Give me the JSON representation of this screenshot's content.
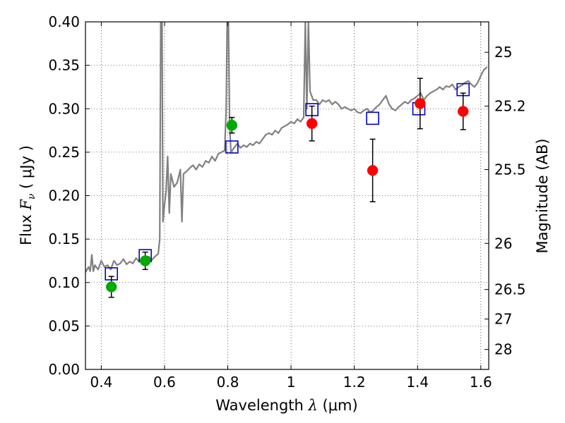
{
  "chart_data": {
    "type": "scatter",
    "xlabel": {
      "pre": "Wavelength ",
      "sym": "λ",
      "post": " (μm)"
    },
    "ylabel": {
      "pre": "Flux ",
      "sym": "F",
      "sub": "ν",
      "post": " ( μJy )"
    },
    "ylabel_right": "Magnitude (AB)",
    "xlim": [
      0.35,
      1.625
    ],
    "ylim": [
      0.0,
      0.4
    ],
    "xticks": [
      0.4,
      0.6,
      0.8,
      1.0,
      1.2,
      1.4,
      1.6
    ],
    "xtick_labels": [
      "0.4",
      "0.6",
      "0.8",
      "1",
      "1.2",
      "1.4",
      "1.6"
    ],
    "yticks": [
      0.0,
      0.05,
      0.1,
      0.15,
      0.2,
      0.25,
      0.3,
      0.35,
      0.4
    ],
    "ytick_labels": [
      "0.00",
      "0.05",
      "0.10",
      "0.15",
      "0.20",
      "0.25",
      "0.30",
      "0.35",
      "0.40"
    ],
    "right_ticks": [
      {
        "label": "25",
        "flux": 0.365
      },
      {
        "label": "25.2",
        "flux": 0.303
      },
      {
        "label": "25.5",
        "flux": 0.23
      },
      {
        "label": "26",
        "flux": 0.145
      },
      {
        "label": "26.5",
        "flux": 0.092
      },
      {
        "label": "27",
        "flux": 0.058
      },
      {
        "label": "28",
        "flux": 0.023
      }
    ],
    "grid": true,
    "colors": {
      "model": "#808080",
      "green": "#00aa00",
      "red": "#ff0000",
      "blue": "#0000cc"
    },
    "series": [
      {
        "kind": "model",
        "points": [
          [
            0.35,
            0.112
          ],
          [
            0.36,
            0.118
          ],
          [
            0.365,
            0.113
          ],
          [
            0.37,
            0.132
          ],
          [
            0.375,
            0.113
          ],
          [
            0.38,
            0.12
          ],
          [
            0.39,
            0.115
          ],
          [
            0.4,
            0.125
          ],
          [
            0.41,
            0.118
          ],
          [
            0.42,
            0.12
          ],
          [
            0.43,
            0.115
          ],
          [
            0.44,
            0.125
          ],
          [
            0.45,
            0.12
          ],
          [
            0.46,
            0.122
          ],
          [
            0.47,
            0.127
          ],
          [
            0.48,
            0.121
          ],
          [
            0.49,
            0.124
          ],
          [
            0.5,
            0.122
          ],
          [
            0.51,
            0.128
          ],
          [
            0.52,
            0.124
          ],
          [
            0.53,
            0.127
          ],
          [
            0.54,
            0.128
          ],
          [
            0.55,
            0.13
          ],
          [
            0.56,
            0.126
          ],
          [
            0.57,
            0.13
          ],
          [
            0.58,
            0.133
          ],
          [
            0.585,
            0.15
          ],
          [
            0.588,
            0.4
          ],
          [
            0.592,
            0.4
          ],
          [
            0.595,
            0.17
          ],
          [
            0.6,
            0.19
          ],
          [
            0.605,
            0.205
          ],
          [
            0.61,
            0.245
          ],
          [
            0.615,
            0.18
          ],
          [
            0.62,
            0.225
          ],
          [
            0.63,
            0.21
          ],
          [
            0.64,
            0.215
          ],
          [
            0.65,
            0.23
          ],
          [
            0.655,
            0.17
          ],
          [
            0.66,
            0.225
          ],
          [
            0.67,
            0.228
          ],
          [
            0.68,
            0.232
          ],
          [
            0.69,
            0.235
          ],
          [
            0.7,
            0.23
          ],
          [
            0.71,
            0.236
          ],
          [
            0.72,
            0.233
          ],
          [
            0.73,
            0.24
          ],
          [
            0.74,
            0.238
          ],
          [
            0.75,
            0.245
          ],
          [
            0.76,
            0.24
          ],
          [
            0.77,
            0.248
          ],
          [
            0.78,
            0.25
          ],
          [
            0.79,
            0.252
          ],
          [
            0.795,
            0.3
          ],
          [
            0.798,
            0.4
          ],
          [
            0.802,
            0.4
          ],
          [
            0.806,
            0.28
          ],
          [
            0.81,
            0.25
          ],
          [
            0.82,
            0.255
          ],
          [
            0.83,
            0.26
          ],
          [
            0.84,
            0.255
          ],
          [
            0.85,
            0.258
          ],
          [
            0.86,
            0.256
          ],
          [
            0.87,
            0.26
          ],
          [
            0.88,
            0.258
          ],
          [
            0.89,
            0.262
          ],
          [
            0.9,
            0.26
          ],
          [
            0.91,
            0.265
          ],
          [
            0.92,
            0.27
          ],
          [
            0.93,
            0.272
          ],
          [
            0.94,
            0.27
          ],
          [
            0.95,
            0.275
          ],
          [
            0.96,
            0.272
          ],
          [
            0.97,
            0.278
          ],
          [
            0.98,
            0.28
          ],
          [
            0.99,
            0.282
          ],
          [
            1.0,
            0.285
          ],
          [
            1.01,
            0.283
          ],
          [
            1.02,
            0.288
          ],
          [
            1.03,
            0.285
          ],
          [
            1.04,
            0.29
          ],
          [
            1.045,
            0.4
          ],
          [
            1.05,
            0.3
          ],
          [
            1.055,
            0.4
          ],
          [
            1.06,
            0.32
          ],
          [
            1.07,
            0.31
          ],
          [
            1.08,
            0.31
          ],
          [
            1.09,
            0.305
          ],
          [
            1.1,
            0.31
          ],
          [
            1.11,
            0.308
          ],
          [
            1.12,
            0.31
          ],
          [
            1.13,
            0.305
          ],
          [
            1.14,
            0.308
          ],
          [
            1.15,
            0.305
          ],
          [
            1.16,
            0.3
          ],
          [
            1.17,
            0.302
          ],
          [
            1.18,
            0.3
          ],
          [
            1.19,
            0.298
          ],
          [
            1.2,
            0.3
          ],
          [
            1.21,
            0.296
          ],
          [
            1.22,
            0.295
          ],
          [
            1.23,
            0.298
          ],
          [
            1.24,
            0.3
          ],
          [
            1.25,
            0.296
          ],
          [
            1.26,
            0.298
          ],
          [
            1.27,
            0.302
          ],
          [
            1.28,
            0.305
          ],
          [
            1.29,
            0.31
          ],
          [
            1.3,
            0.315
          ],
          [
            1.31,
            0.305
          ],
          [
            1.32,
            0.3
          ],
          [
            1.33,
            0.298
          ],
          [
            1.34,
            0.302
          ],
          [
            1.35,
            0.305
          ],
          [
            1.36,
            0.308
          ],
          [
            1.37,
            0.306
          ],
          [
            1.38,
            0.31
          ],
          [
            1.39,
            0.312
          ],
          [
            1.4,
            0.315
          ],
          [
            1.41,
            0.318
          ],
          [
            1.42,
            0.31
          ],
          [
            1.43,
            0.315
          ],
          [
            1.44,
            0.318
          ],
          [
            1.45,
            0.32
          ],
          [
            1.46,
            0.322
          ],
          [
            1.47,
            0.325
          ],
          [
            1.48,
            0.322
          ],
          [
            1.49,
            0.326
          ],
          [
            1.5,
            0.325
          ],
          [
            1.51,
            0.328
          ],
          [
            1.52,
            0.322
          ],
          [
            1.53,
            0.325
          ],
          [
            1.54,
            0.327
          ],
          [
            1.55,
            0.33
          ],
          [
            1.56,
            0.332
          ],
          [
            1.57,
            0.328
          ],
          [
            1.58,
            0.325
          ],
          [
            1.59,
            0.33
          ],
          [
            1.6,
            0.338
          ],
          [
            1.61,
            0.345
          ],
          [
            1.62,
            0.348
          ]
        ]
      },
      {
        "kind": "observed",
        "color": "green",
        "points": [
          {
            "x": 0.432,
            "y": 0.095,
            "err": 0.012
          },
          {
            "x": 0.539,
            "y": 0.125,
            "err": 0.01
          },
          {
            "x": 0.813,
            "y": 0.281,
            "err": 0.009
          }
        ]
      },
      {
        "kind": "observed",
        "color": "red",
        "points": [
          {
            "x": 1.066,
            "y": 0.283,
            "err": 0.02
          },
          {
            "x": 1.258,
            "y": 0.229,
            "err": 0.036
          },
          {
            "x": 1.408,
            "y": 0.306,
            "err": 0.029
          },
          {
            "x": 1.544,
            "y": 0.297,
            "err": 0.021
          }
        ]
      },
      {
        "kind": "model_photometry",
        "color": "blue",
        "points": [
          {
            "x": 0.432,
            "y": 0.11
          },
          {
            "x": 0.539,
            "y": 0.131
          },
          {
            "x": 0.813,
            "y": 0.256
          },
          {
            "x": 1.066,
            "y": 0.299
          },
          {
            "x": 1.258,
            "y": 0.289
          },
          {
            "x": 1.404,
            "y": 0.3
          },
          {
            "x": 1.544,
            "y": 0.322
          }
        ]
      }
    ]
  }
}
